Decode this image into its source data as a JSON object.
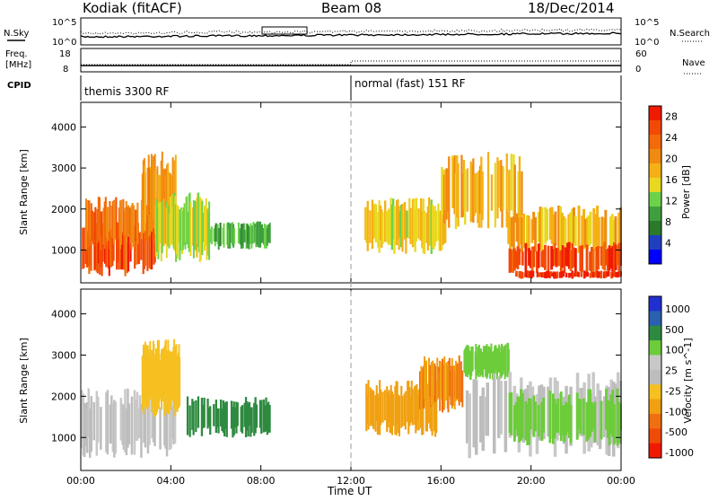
{
  "header": {
    "station": "Kodiak (fitACF)",
    "beam": "Beam 08",
    "date": "18/Dec/2014"
  },
  "top_panels": {
    "nsky_label": "N.Sky",
    "nsearch_label": "N.Search",
    "noise_ticks": [
      "10^5",
      "10^0"
    ],
    "freq_label_line1": "Freq.",
    "freq_label_line2": "[MHz]",
    "freq_ticks": [
      "18",
      "8"
    ],
    "nave_label": "Nave",
    "nave_ticks": [
      "60",
      "0"
    ],
    "cpid_label": "CPID",
    "cpid_modes": [
      "themis 3300 RF",
      "normal (fast) 151 RF"
    ]
  },
  "colors": {
    "power": [
      "#0000ff",
      "#1f3fc0",
      "#2a7a2a",
      "#3f9f3f",
      "#6cd24a",
      "#e8d820",
      "#f5b015",
      "#f08a10",
      "#f26a0a",
      "#f24a06",
      "#f01a00"
    ],
    "velocity": [
      "#2030d0",
      "#2a60b0",
      "#2e8a40",
      "#6ccc3a",
      "#c8c8c8",
      "#bdbdbd",
      "#f5c020",
      "#f0a010",
      "#f07010",
      "#f04a08",
      "#f01a00"
    ]
  },
  "chart_data": [
    {
      "type": "heatmap",
      "ylabel": "Slant Range [km]",
      "xlabel": "",
      "x_ticks": [
        "00:00",
        "04:00",
        "08:00",
        "12:00",
        "16:00",
        "20:00",
        "00:00"
      ],
      "x_hours": [
        0,
        4,
        8,
        12,
        16,
        20,
        24
      ],
      "y_ticks": [
        1000,
        2000,
        3000,
        4000
      ],
      "ylim": [
        200,
        4600
      ],
      "colorbar_label": "Power [dB]",
      "colorbar_ticks": [
        4,
        8,
        12,
        16,
        20,
        24,
        28
      ],
      "clim": [
        0,
        30
      ],
      "regions": [
        {
          "t0": 0.0,
          "t1": 3.3,
          "r0": 350,
          "r1": 1700,
          "level": 27
        },
        {
          "t0": 0.2,
          "t1": 3.4,
          "r0": 1000,
          "r1": 2300,
          "level": 24
        },
        {
          "t0": 2.7,
          "t1": 4.2,
          "r0": 1400,
          "r1": 3400,
          "level": 20
        },
        {
          "t0": 3.3,
          "t1": 5.7,
          "r0": 700,
          "r1": 2400,
          "level": 14
        },
        {
          "t0": 5.7,
          "t1": 8.4,
          "r0": 1000,
          "r1": 1700,
          "level": 10
        },
        {
          "t0": 12.6,
          "t1": 16.2,
          "r0": 900,
          "r1": 2300,
          "level": 16
        },
        {
          "t0": 16.0,
          "t1": 19.6,
          "r0": 1500,
          "r1": 3400,
          "level": 18
        },
        {
          "t0": 18.8,
          "t1": 24.0,
          "r0": 900,
          "r1": 2100,
          "level": 18
        },
        {
          "t0": 19.0,
          "t1": 24.0,
          "r0": 400,
          "r1": 1200,
          "level": 27
        },
        {
          "t0": 19.3,
          "t1": 24.0,
          "r0": 300,
          "r1": 500,
          "level": 29
        }
      ]
    },
    {
      "type": "heatmap",
      "ylabel": "Slant Range [km]",
      "xlabel": "Time UT",
      "x_ticks": [
        "00:00",
        "04:00",
        "08:00",
        "12:00",
        "16:00",
        "20:00",
        "00:00"
      ],
      "x_hours": [
        0,
        4,
        8,
        12,
        16,
        20,
        24
      ],
      "y_ticks": [
        1000,
        2000,
        3000,
        4000
      ],
      "ylim": [
        200,
        4600
      ],
      "colorbar_label": "Velocity [m s^-1]",
      "colorbar_ticks": [
        "1000",
        "500",
        "100",
        "25",
        "-25",
        "-100",
        "-500",
        "-1000"
      ],
      "regions": [
        {
          "t0": 0.0,
          "t1": 4.2,
          "r0": 500,
          "r1": 2200,
          "level": 0
        },
        {
          "t0": 2.7,
          "t1": 4.4,
          "r0": 1500,
          "r1": 3400,
          "level": -60
        },
        {
          "t0": 4.7,
          "t1": 8.4,
          "r0": 1000,
          "r1": 2000,
          "level": 120
        },
        {
          "t0": 12.6,
          "t1": 15.8,
          "r0": 1000,
          "r1": 2400,
          "level": -150
        },
        {
          "t0": 15.0,
          "t1": 17.0,
          "r0": 1600,
          "r1": 3000,
          "level": -300
        },
        {
          "t0": 17.0,
          "t1": 19.0,
          "r0": 2400,
          "r1": 3300,
          "level": 60
        },
        {
          "t0": 17.0,
          "t1": 24.0,
          "r0": 500,
          "r1": 2600,
          "level": 0
        },
        {
          "t0": 19.0,
          "t1": 24.0,
          "r0": 800,
          "r1": 2200,
          "level": 80
        }
      ]
    }
  ]
}
